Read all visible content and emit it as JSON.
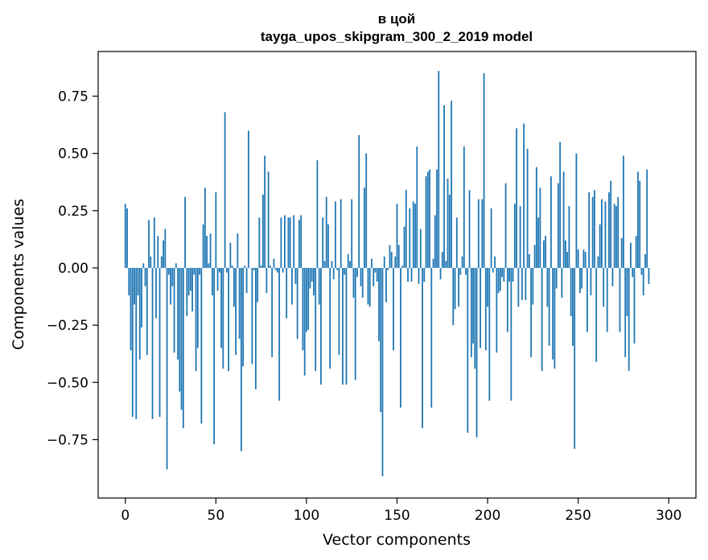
{
  "chart_data": {
    "type": "bar",
    "title": "в цой",
    "subtitle": "tayga_upos_skipgram_300_2_2019 model",
    "xlabel": "Vector components",
    "ylabel": "Components values",
    "xlim": [
      -15,
      315
    ],
    "ylim": [
      -1.005,
      0.945
    ],
    "x_ticks": [
      0,
      50,
      100,
      150,
      200,
      250,
      300
    ],
    "x_tick_labels": [
      "0",
      "50",
      "100",
      "150",
      "200",
      "250",
      "300"
    ],
    "y_ticks": [
      0.75,
      0.5,
      0.25,
      0.0,
      -0.25,
      -0.5,
      -0.75
    ],
    "y_tick_labels": [
      "0.75",
      "0.50",
      "0.25",
      "0.00",
      "−0.25",
      "−0.50",
      "−0.75"
    ],
    "grid": false,
    "legend": "none",
    "bar_color": "#1f77b4",
    "values": [
      0.28,
      0.26,
      -0.12,
      -0.36,
      -0.65,
      -0.16,
      -0.66,
      -0.12,
      -0.4,
      -0.26,
      0.02,
      -0.08,
      -0.38,
      0.21,
      0.05,
      -0.66,
      0.22,
      -0.22,
      0.14,
      -0.65,
      0.05,
      0.12,
      0.17,
      -0.88,
      -0.03,
      -0.16,
      -0.08,
      -0.37,
      0.02,
      -0.4,
      -0.54,
      -0.62,
      -0.7,
      0.31,
      -0.21,
      -0.12,
      -0.1,
      -0.19,
      -0.03,
      -0.45,
      -0.35,
      -0.03,
      -0.68,
      0.19,
      0.35,
      0.14,
      0.02,
      0.15,
      -0.12,
      -0.77,
      0.33,
      -0.1,
      -0.02,
      -0.35,
      -0.44,
      0.68,
      -0.02,
      -0.45,
      0.11,
      0.01,
      -0.17,
      -0.38,
      0.15,
      -0.31,
      -0.8,
      -0.43,
      0.01,
      -0.11,
      0.6,
      0.0,
      -0.42,
      -0.01,
      -0.53,
      -0.15,
      0.22,
      0.01,
      0.32,
      0.49,
      -0.11,
      0.42,
      0.01,
      -0.39,
      0.04,
      -0.01,
      -0.02,
      -0.58,
      0.22,
      -0.02,
      0.23,
      -0.22,
      0.22,
      0.22,
      -0.16,
      0.23,
      -0.07,
      -0.31,
      0.21,
      0.23,
      -0.36,
      -0.47,
      -0.28,
      -0.27,
      -0.09,
      -0.06,
      -0.12,
      -0.45,
      0.47,
      -0.16,
      -0.51,
      0.22,
      0.03,
      0.31,
      0.19,
      -0.44,
      0.03,
      -0.05,
      0.29,
      -0.01,
      -0.38,
      0.3,
      -0.51,
      -0.03,
      -0.51,
      0.06,
      0.03,
      0.3,
      -0.13,
      -0.49,
      -0.04,
      0.58,
      -0.08,
      -0.13,
      0.35,
      0.5,
      -0.16,
      -0.17,
      0.04,
      -0.08,
      -0.02,
      -0.06,
      -0.32,
      -0.63,
      -0.91,
      0.05,
      -0.15,
      -0.01,
      0.1,
      0.07,
      -0.36,
      0.05,
      0.28,
      0.1,
      -0.61,
      0.01,
      0.18,
      0.34,
      -0.06,
      0.26,
      -0.06,
      0.29,
      0.28,
      0.53,
      -0.07,
      0.17,
      -0.7,
      -0.06,
      0.4,
      0.42,
      0.43,
      -0.61,
      0.04,
      0.23,
      0.43,
      0.86,
      -0.05,
      0.07,
      0.71,
      0.03,
      0.39,
      0.32,
      0.73,
      -0.25,
      -0.18,
      0.22,
      -0.17,
      -0.03,
      0.05,
      0.53,
      -0.03,
      -0.72,
      0.34,
      -0.39,
      -0.33,
      -0.44,
      -0.74,
      0.3,
      -0.35,
      0.3,
      0.85,
      -0.36,
      -0.17,
      -0.58,
      0.26,
      -0.02,
      0.05,
      -0.37,
      -0.11,
      -0.1,
      -0.04,
      -0.06,
      0.37,
      -0.28,
      -0.06,
      -0.58,
      -0.06,
      0.28,
      0.61,
      -0.17,
      0.27,
      -0.14,
      0.63,
      -0.14,
      0.52,
      0.06,
      -0.39,
      -0.16,
      0.1,
      0.44,
      0.22,
      0.35,
      -0.45,
      0.12,
      0.14,
      -0.17,
      -0.34,
      0.4,
      -0.4,
      -0.44,
      -0.09,
      0.37,
      0.55,
      -0.13,
      0.42,
      0.12,
      0.07,
      0.27,
      -0.21,
      -0.34,
      -0.79,
      0.5,
      0.08,
      -0.11,
      -0.09,
      0.08,
      0.07,
      -0.28,
      0.33,
      -0.12,
      0.31,
      0.34,
      -0.41,
      0.05,
      0.19,
      0.3,
      -0.17,
      0.29,
      -0.28,
      0.33,
      0.38,
      -0.08,
      0.28,
      0.27,
      0.31,
      -0.28,
      0.13,
      0.49,
      -0.39,
      -0.21,
      -0.45,
      0.11,
      -0.04,
      -0.33,
      0.14,
      0.42,
      0.38,
      -0.03,
      -0.12,
      0.06,
      0.43,
      -0.07
    ]
  }
}
